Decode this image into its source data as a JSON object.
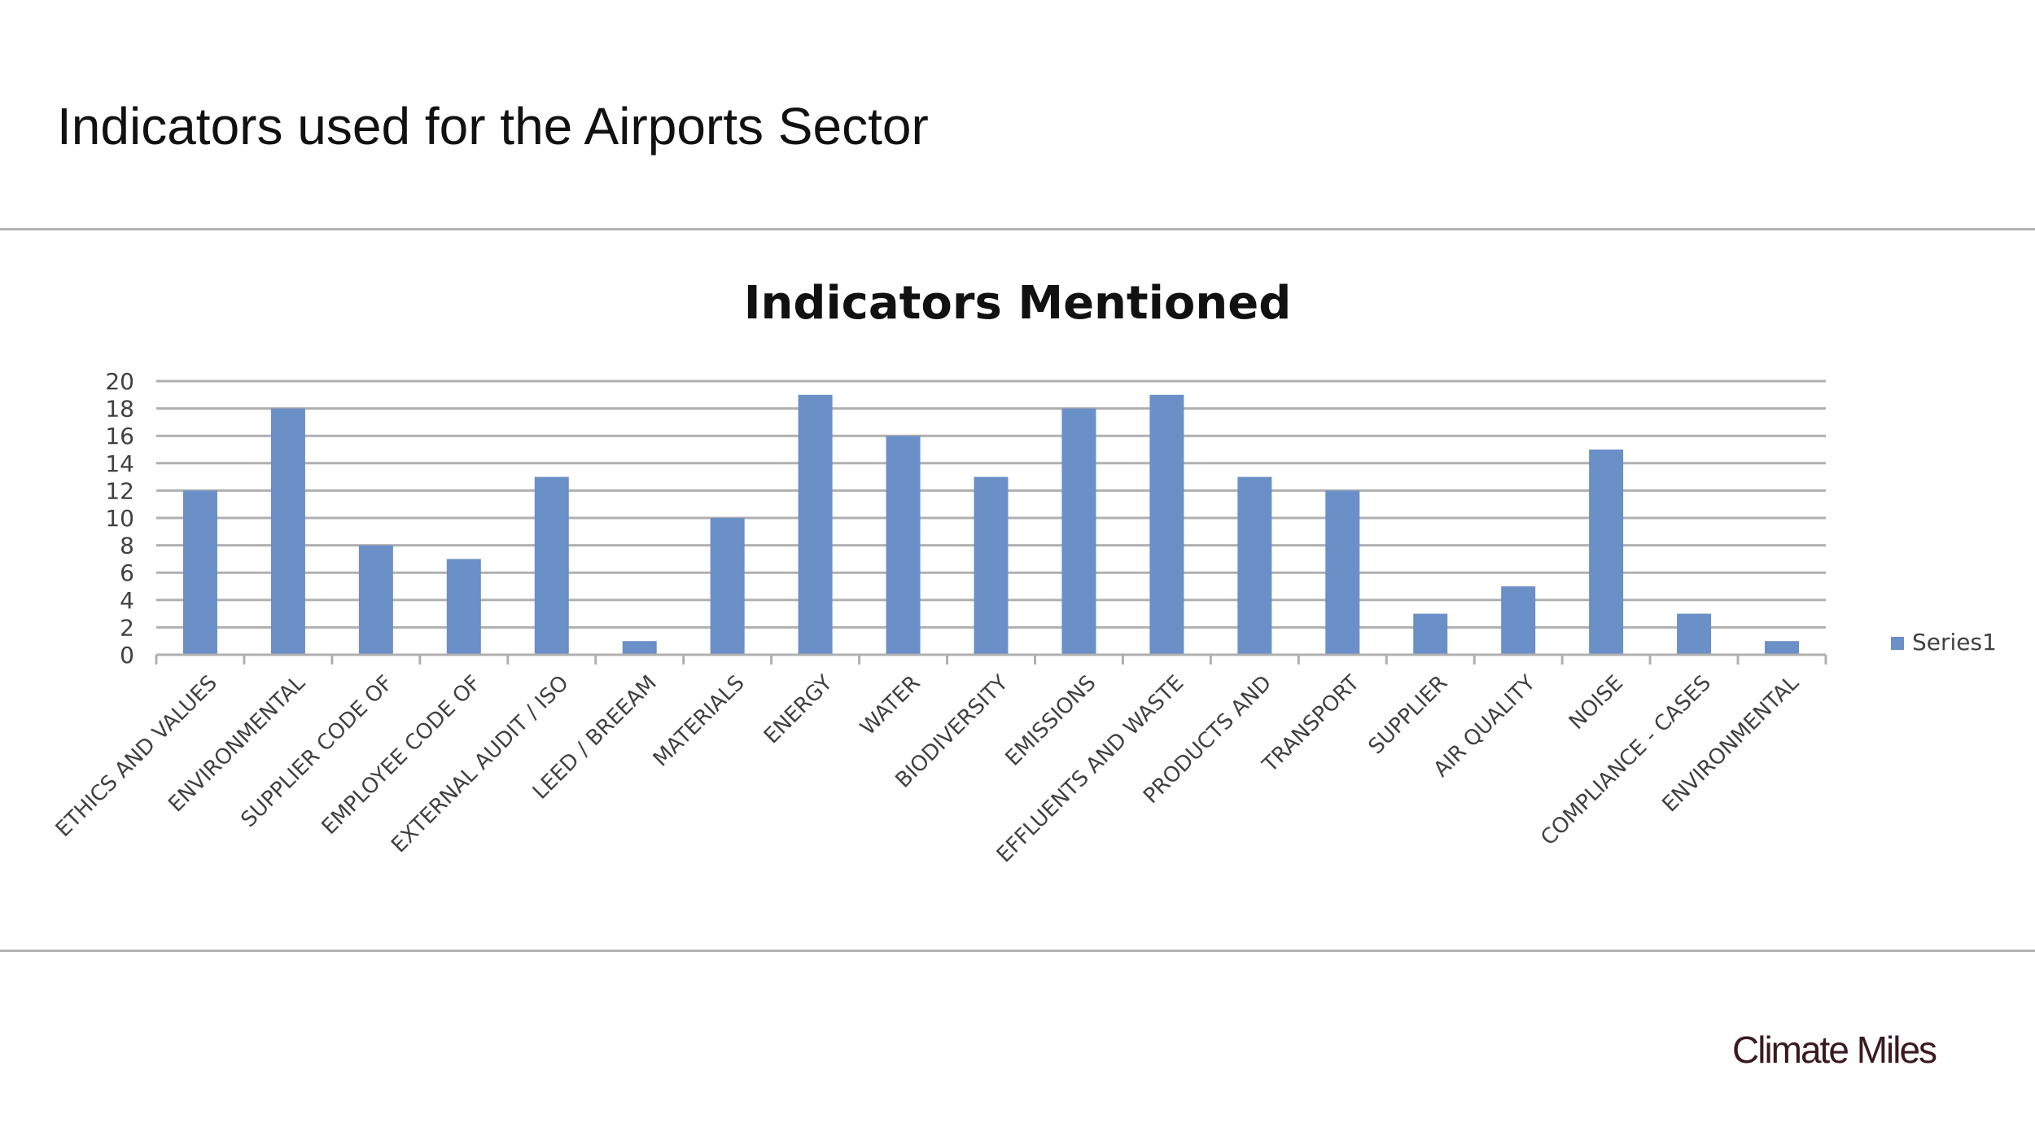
{
  "slide": {
    "title": "Indicators used for the Airports Sector",
    "brand": "Climate Miles"
  },
  "colors": {
    "bar": "#6b8fc7",
    "grid": "#b0b0b0",
    "axis_text": "#404040",
    "title_text": "#111111"
  },
  "chart_data": {
    "type": "bar",
    "title": "Indicators Mentioned",
    "xlabel": "",
    "ylabel": "",
    "ylim": [
      0,
      20
    ],
    "yticks": [
      0,
      2,
      4,
      6,
      8,
      10,
      12,
      14,
      16,
      18,
      20
    ],
    "grid": true,
    "legend_position": "right",
    "categories": [
      "ETHICS AND VALUES",
      "ENVIRONMENTAL",
      "SUPPLIER CODE OF",
      "EMPLOYEE CODE OF",
      "EXTERNAL AUDIT / ISO",
      "LEED / BREEAM",
      "MATERIALS",
      "ENERGY",
      "WATER",
      "BIODIVERSITY",
      "EMISSIONS",
      "EFFLUENTS AND WASTE",
      "PRODUCTS AND",
      "TRANSPORT",
      "SUPPLIER",
      "AIR QUALITY",
      "NOISE",
      "COMPLIANCE - CASES",
      "ENVIRONMENTAL"
    ],
    "series": [
      {
        "name": "Series1",
        "values": [
          12,
          18,
          8,
          7,
          13,
          1,
          10,
          19,
          16,
          13,
          18,
          19,
          13,
          12,
          3,
          5,
          15,
          3,
          1
        ]
      }
    ]
  }
}
